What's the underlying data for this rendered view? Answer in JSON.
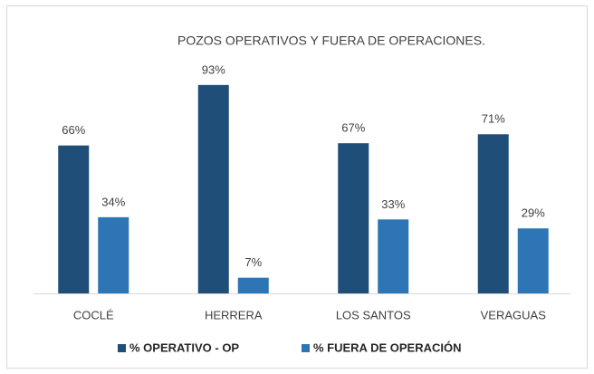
{
  "chart_data": {
    "type": "bar",
    "title": "POZOS OPERATIVOS Y FUERA DE OPERACIONES.",
    "categories": [
      "COCLÉ",
      "HERRERA",
      "LOS SANTOS",
      "VERAGUAS"
    ],
    "series": [
      {
        "name": "% OPERATIVO - OP",
        "color": "#1f4e79",
        "values": [
          66,
          93,
          67,
          71
        ],
        "value_labels": [
          "66%",
          "93%",
          "67%",
          "71%"
        ]
      },
      {
        "name": "% FUERA DE OPERACIÓN",
        "color": "#2e75b6",
        "values": [
          34,
          7,
          33,
          29
        ],
        "value_labels": [
          "34%",
          "7%",
          "33%",
          "29%"
        ]
      }
    ],
    "legend": "bottom"
  }
}
